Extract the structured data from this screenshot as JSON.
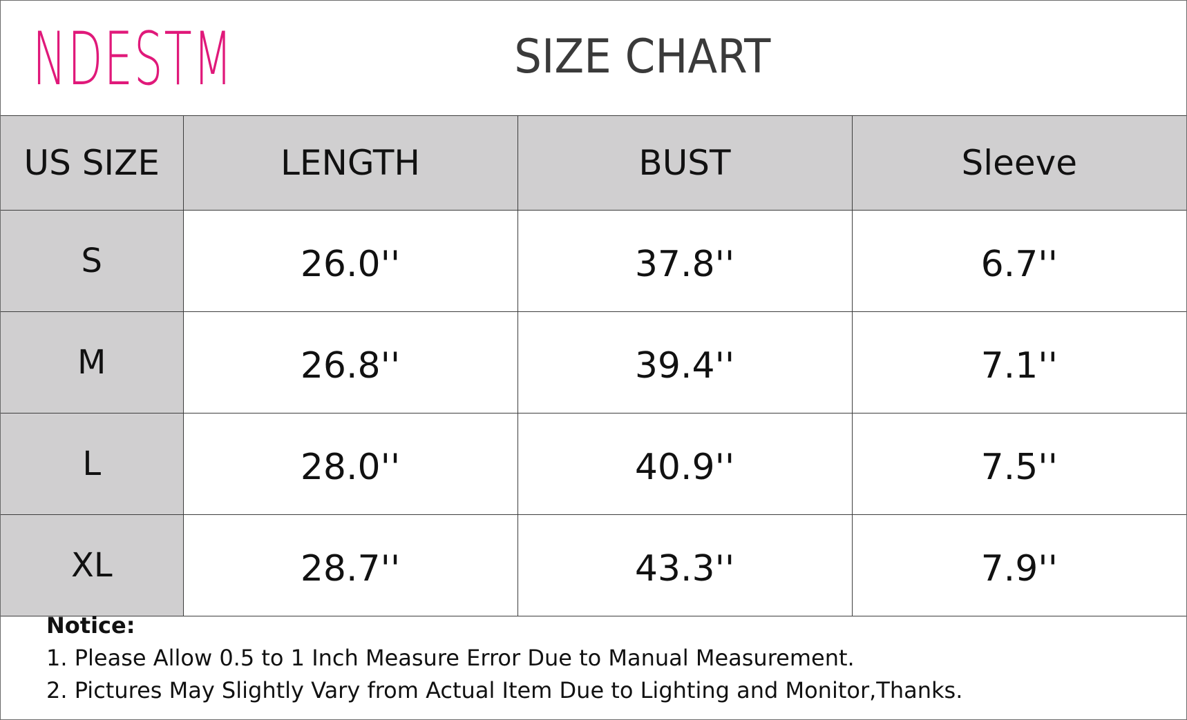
{
  "header": {
    "brand": "NDESTM",
    "title": "SIZE CHART"
  },
  "colors": {
    "brand": "#e0197a",
    "header_fill": "#d0cfd0",
    "border": "#3c3c3c"
  },
  "table": {
    "columns": [
      "US SIZE",
      "LENGTH",
      "BUST",
      "Sleeve"
    ],
    "rows": [
      {
        "size": "S",
        "length": "26.0''",
        "bust": "37.8''",
        "sleeve": "6.7''"
      },
      {
        "size": "M",
        "length": "26.8''",
        "bust": "39.4''",
        "sleeve": "7.1''"
      },
      {
        "size": "L",
        "length": "28.0''",
        "bust": "40.9''",
        "sleeve": "7.5''"
      },
      {
        "size": "XL",
        "length": "28.7''",
        "bust": "43.3''",
        "sleeve": "7.9''"
      }
    ]
  },
  "notice": {
    "title": "Notice:",
    "items": [
      "1. Please Allow 0.5 to 1 Inch Measure Error Due to Manual Measurement.",
      "2. Pictures May Slightly Vary from Actual Item Due to Lighting and Monitor,Thanks."
    ]
  }
}
